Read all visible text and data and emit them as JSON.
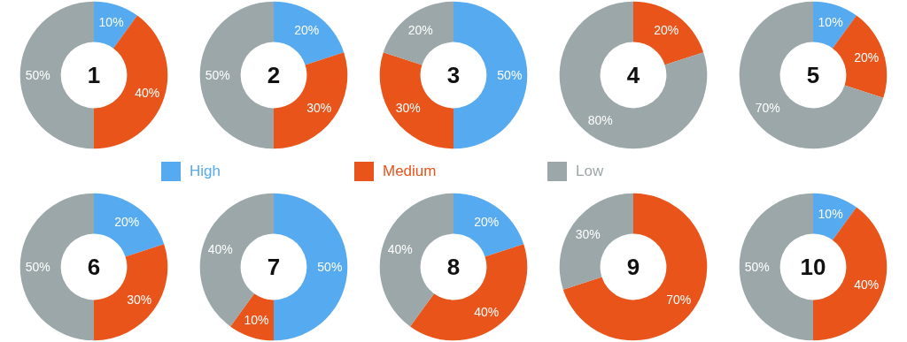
{
  "chart_data": [
    {
      "type": "donut",
      "title": "1",
      "categories": [
        "High",
        "Medium",
        "Low"
      ],
      "values": [
        10,
        40,
        50
      ],
      "colors": [
        "#55aaf0",
        "#e8541a",
        "#9ba7a8"
      ],
      "value_labels": [
        "10%",
        "40%",
        "50%"
      ],
      "legend": "bottom"
    },
    {
      "type": "donut",
      "title": "2",
      "categories": [
        null,
        null,
        null
      ],
      "values": [
        20,
        30,
        50
      ],
      "colors": [
        "#55aaf0",
        "#e8541a",
        "#9ba7a8"
      ],
      "value_labels": [
        "20%",
        "30%",
        "50%"
      ]
    },
    {
      "type": "donut",
      "title": "3",
      "categories": [
        null,
        null,
        null
      ],
      "values": [
        50,
        30,
        20
      ],
      "colors": [
        "#55aaf0",
        "#e8541a",
        "#9ba7a8"
      ],
      "value_labels": [
        "50%",
        "30%",
        "20%"
      ]
    },
    {
      "type": "donut",
      "title": "4",
      "categories": [
        null,
        null
      ],
      "values": [
        20,
        80
      ],
      "colors": [
        "#e8541a",
        "#9ba7a8"
      ],
      "value_labels": [
        "20%",
        "80%"
      ]
    },
    {
      "type": "donut",
      "title": "5",
      "categories": [
        null,
        null,
        null
      ],
      "values": [
        10,
        20,
        70
      ],
      "colors": [
        "#55aaf0",
        "#e8541a",
        "#9ba7a8"
      ],
      "value_labels": [
        "10%",
        "20%",
        "70%"
      ]
    },
    {
      "type": "donut",
      "title": "6",
      "categories": [
        null,
        null,
        null
      ],
      "values": [
        20,
        30,
        50
      ],
      "colors": [
        "#55aaf0",
        "#e8541a",
        "#9ba7a8"
      ],
      "value_labels": [
        "20%",
        "30%",
        "50%"
      ]
    },
    {
      "type": "donut",
      "title": "7",
      "categories": [
        null,
        null,
        null
      ],
      "values": [
        50,
        10,
        40
      ],
      "colors": [
        "#55aaf0",
        "#e8541a",
        "#9ba7a8"
      ],
      "value_labels": [
        "50%",
        "10%",
        "40%"
      ]
    },
    {
      "type": "donut",
      "title": "8",
      "categories": [
        null,
        null,
        null
      ],
      "values": [
        20,
        40,
        40
      ],
      "colors": [
        "#55aaf0",
        "#e8541a",
        "#9ba7a8"
      ],
      "value_labels": [
        "20%",
        "40%",
        "40%"
      ]
    },
    {
      "type": "donut",
      "title": "9",
      "categories": [
        null,
        null
      ],
      "values": [
        70,
        30
      ],
      "colors": [
        "#e8541a",
        "#9ba7a8"
      ],
      "value_labels": [
        "70%",
        "30%"
      ]
    },
    {
      "type": "donut",
      "title": "10",
      "categories": [
        null,
        null,
        null
      ],
      "values": [
        10,
        40,
        50
      ],
      "colors": [
        "#55aaf0",
        "#e8541a",
        "#9ba7a8"
      ],
      "value_labels": [
        "10%",
        "40%",
        "50%"
      ]
    }
  ]
}
